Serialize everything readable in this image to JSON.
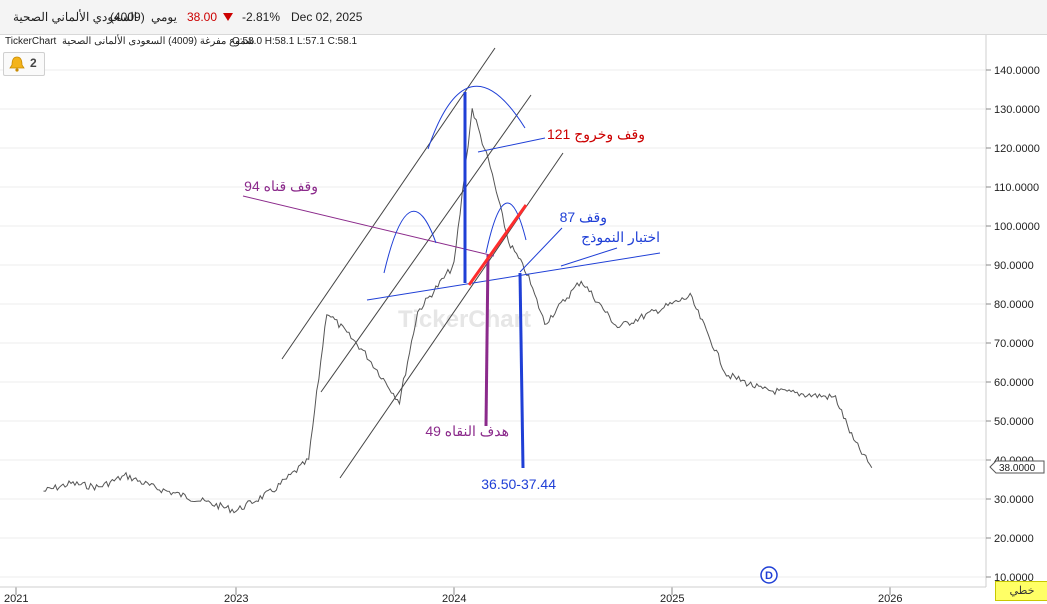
{
  "header": {
    "name": "السعودي الألماني الصحية",
    "code": "(4009)",
    "period": "يومي",
    "price": "38.00",
    "change": "-2.81%",
    "date": "Dec 02, 2025"
  },
  "infobar": {
    "brand": "TickerChart",
    "title": "شموع مفرغة (4009) السعودى الألمانى الصحية",
    "ohlc": "O:58.0  H:58.1  L:57.1  C:58.1"
  },
  "alerts": {
    "count": "2"
  },
  "watermark": "TickerChart",
  "mode_button": "خطي",
  "colors": {
    "down": "#cc0000",
    "accent_blue": "#1f3fd6",
    "purple": "#8b2a8b",
    "grid": "#eeeeee",
    "price_series": "#555555"
  },
  "icons": {
    "alerts": "bell-icon",
    "down_arrow": "triangle-down-icon",
    "dividend_marker": "circled-d-icon"
  },
  "chart_data": {
    "type": "line",
    "title": "",
    "xlabel": "",
    "ylabel": "",
    "ylim": [
      7,
      148
    ],
    "y_ticks": [
      "140.0000",
      "130.0000",
      "120.0000",
      "110.0000",
      "100.0000",
      "90.0000",
      "80.0000",
      "70.0000",
      "60.0000",
      "50.0000",
      "40.0000",
      "30.0000",
      "20.0000",
      "10.0000"
    ],
    "x_ticks": [
      "2021",
      "2023",
      "2024",
      "2025",
      "2026"
    ],
    "last_price_label": "38.0000",
    "series": [
      {
        "x": [
          "2021-04",
          "2021-07",
          "2021-10",
          "2022-01",
          "2022-04",
          "2022-07",
          "2022-10",
          "2023-01",
          "2023-03",
          "2023-05",
          "2023-06",
          "2023-08",
          "2023-10",
          "2023-11",
          "2024-01",
          "2024-02",
          "2024-03",
          "2024-04",
          "2024-05",
          "2024-06",
          "2024-08",
          "2024-10",
          "2024-12",
          "2025-02",
          "2025-04",
          "2025-06",
          "2025-08",
          "2025-10",
          "2025-11",
          "2025-12"
        ],
        "values": [
          32,
          34,
          33,
          36,
          33,
          31,
          29,
          27,
          32,
          40,
          78,
          68,
          55,
          78,
          90,
          130,
          115,
          96,
          88,
          75,
          86,
          74,
          78,
          82,
          62,
          58,
          57,
          56,
          45,
          38
        ]
      }
    ],
    "annotations": [
      {
        "text": "وقف وخروج 121",
        "color": "#cc0000"
      },
      {
        "text": "94 وقف قناه",
        "color": "#8b2a8b"
      },
      {
        "text": "وقف 87",
        "color": "#1f3fd6"
      },
      {
        "text": "اختبار النموذج",
        "color": "#1f3fd6"
      },
      {
        "text": "هدف النقاه 49",
        "color": "#8b2a8b"
      },
      {
        "text": "36.50-37.44",
        "color": "#1f3fd6"
      }
    ],
    "marker": "D",
    "grid": true,
    "legend": "none"
  }
}
